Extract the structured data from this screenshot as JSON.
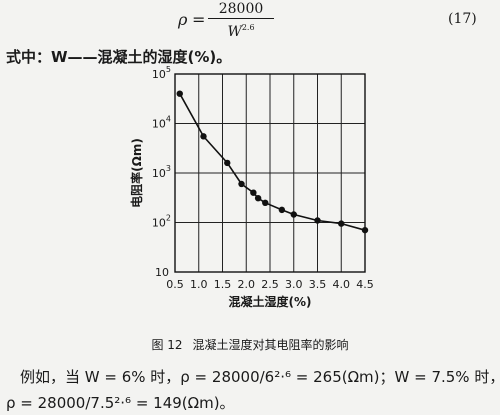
{
  "formula": {
    "rho": "ρ",
    "eq": "=",
    "numerator": "28000",
    "denominator_base": "W",
    "denominator_exp": "2.6",
    "eq_number": "(17)"
  },
  "where_line": "式中：W——混凝土的湿度(%)。",
  "chart_data": {
    "type": "line",
    "xlabel": "混凝土湿度(%)",
    "ylabel": "电阻率(Ωm)",
    "x_ticks": [
      "0.5",
      "1.0",
      "1.5",
      "2.0",
      "2.5",
      "3.0",
      "3.5",
      "4.0",
      "4.5"
    ],
    "y_tick_labels": [
      {
        "base": "10",
        "exp": "5"
      },
      {
        "base": "10",
        "exp": "4"
      },
      {
        "base": "10",
        "exp": "3"
      },
      {
        "base": "10",
        "exp": "2"
      },
      {
        "base": "10",
        "exp": ""
      }
    ],
    "xlim": [
      0.5,
      4.5
    ],
    "ylim": [
      10,
      100000
    ],
    "y_scale": "log",
    "grid": true,
    "points": [
      {
        "x": 0.6,
        "y": 40000
      },
      {
        "x": 1.1,
        "y": 5500
      },
      {
        "x": 1.6,
        "y": 1600
      },
      {
        "x": 1.9,
        "y": 600
      },
      {
        "x": 2.15,
        "y": 400
      },
      {
        "x": 2.25,
        "y": 310
      },
      {
        "x": 2.4,
        "y": 250
      },
      {
        "x": 2.75,
        "y": 180
      },
      {
        "x": 3.0,
        "y": 145
      },
      {
        "x": 3.5,
        "y": 110
      },
      {
        "x": 4.0,
        "y": 95
      },
      {
        "x": 4.5,
        "y": 70
      }
    ]
  },
  "caption": {
    "fig_no": "图 12",
    "text": "混凝土湿度对其电阻率的影响"
  },
  "para1": "例如，当 W = 6% 时，ρ = 28000/6²·⁶ = 265(Ωm)；W = 7.5% 时，",
  "para2": "ρ = 28000/7.5²·⁶ = 149(Ωm)。"
}
